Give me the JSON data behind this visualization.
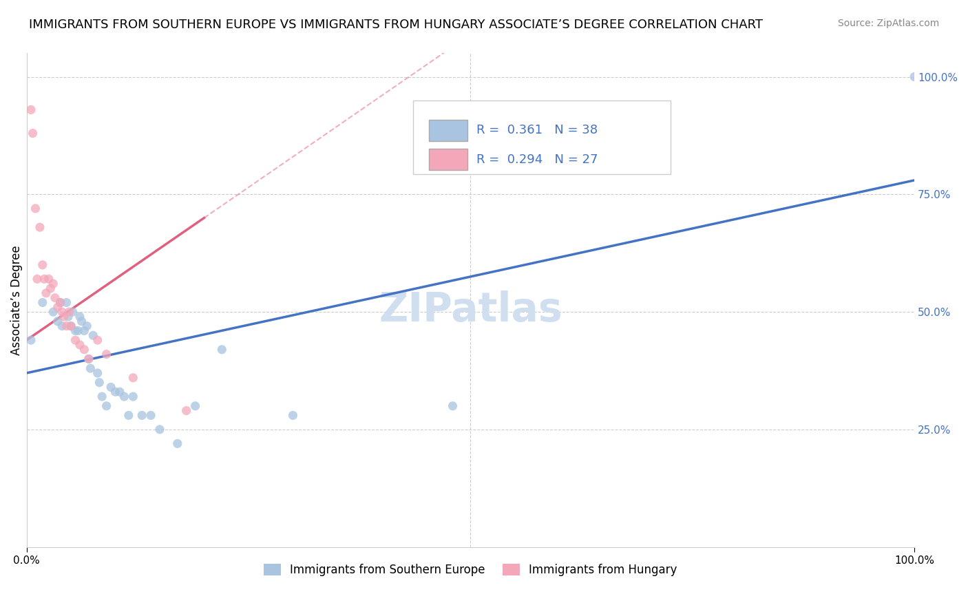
{
  "title": "IMMIGRANTS FROM SOUTHERN EUROPE VS IMMIGRANTS FROM HUNGARY ASSOCIATE’S DEGREE CORRELATION CHART",
  "source_text": "Source: ZipAtlas.com",
  "ylabel": "Associate’s Degree",
  "watermark": "ZIPatlas",
  "blue_label": "Immigrants from Southern Europe",
  "pink_label": "Immigrants from Hungary",
  "blue_R": 0.361,
  "blue_N": 38,
  "pink_R": 0.294,
  "pink_N": 27,
  "blue_color": "#a8c4e0",
  "pink_color": "#f4a7b9",
  "blue_line_color": "#4472c4",
  "pink_line_color": "#e06080",
  "blue_scatter_x": [
    0.005,
    0.018,
    0.03,
    0.035,
    0.038,
    0.04,
    0.045,
    0.047,
    0.05,
    0.052,
    0.055,
    0.058,
    0.06,
    0.062,
    0.065,
    0.068,
    0.07,
    0.072,
    0.075,
    0.08,
    0.082,
    0.085,
    0.09,
    0.095,
    0.1,
    0.105,
    0.11,
    0.115,
    0.12,
    0.13,
    0.14,
    0.15,
    0.17,
    0.19,
    0.22,
    0.3,
    0.48,
    1.0
  ],
  "blue_scatter_y": [
    0.44,
    0.52,
    0.5,
    0.48,
    0.52,
    0.47,
    0.52,
    0.49,
    0.47,
    0.5,
    0.46,
    0.46,
    0.49,
    0.48,
    0.46,
    0.47,
    0.4,
    0.38,
    0.45,
    0.37,
    0.35,
    0.32,
    0.3,
    0.34,
    0.33,
    0.33,
    0.32,
    0.28,
    0.32,
    0.28,
    0.28,
    0.25,
    0.22,
    0.3,
    0.42,
    0.28,
    0.3,
    1.0
  ],
  "pink_scatter_x": [
    0.005,
    0.007,
    0.01,
    0.012,
    0.015,
    0.018,
    0.02,
    0.022,
    0.025,
    0.027,
    0.03,
    0.032,
    0.035,
    0.038,
    0.04,
    0.042,
    0.045,
    0.048,
    0.05,
    0.055,
    0.06,
    0.065,
    0.07,
    0.08,
    0.09,
    0.12,
    0.18
  ],
  "pink_scatter_y": [
    0.93,
    0.88,
    0.72,
    0.57,
    0.68,
    0.6,
    0.57,
    0.54,
    0.57,
    0.55,
    0.56,
    0.53,
    0.51,
    0.52,
    0.5,
    0.49,
    0.47,
    0.5,
    0.47,
    0.44,
    0.43,
    0.42,
    0.4,
    0.44,
    0.41,
    0.36,
    0.29
  ],
  "blue_line_x": [
    0.0,
    1.0
  ],
  "blue_line_y": [
    0.37,
    0.78
  ],
  "pink_line_x": [
    0.0,
    0.2
  ],
  "pink_line_y": [
    0.44,
    0.7
  ],
  "xlim": [
    0.0,
    1.0
  ],
  "ylim": [
    0.0,
    1.05
  ],
  "xtick_positions": [
    0.0,
    1.0
  ],
  "xtick_labels": [
    "0.0%",
    "100.0%"
  ],
  "ytick_positions": [
    0.25,
    0.5,
    0.75,
    1.0
  ],
  "ytick_labels": [
    "25.0%",
    "50.0%",
    "75.0%",
    "100.0%"
  ],
  "grid_color": "#cccccc",
  "background_color": "#ffffff",
  "title_fontsize": 13,
  "axis_label_fontsize": 12,
  "tick_fontsize": 11,
  "legend_fontsize": 13,
  "watermark_fontsize": 42,
  "watermark_color": "#d0dff0",
  "dot_size": 90,
  "dot_alpha": 0.75,
  "right_ytick_color": "#4472c4"
}
